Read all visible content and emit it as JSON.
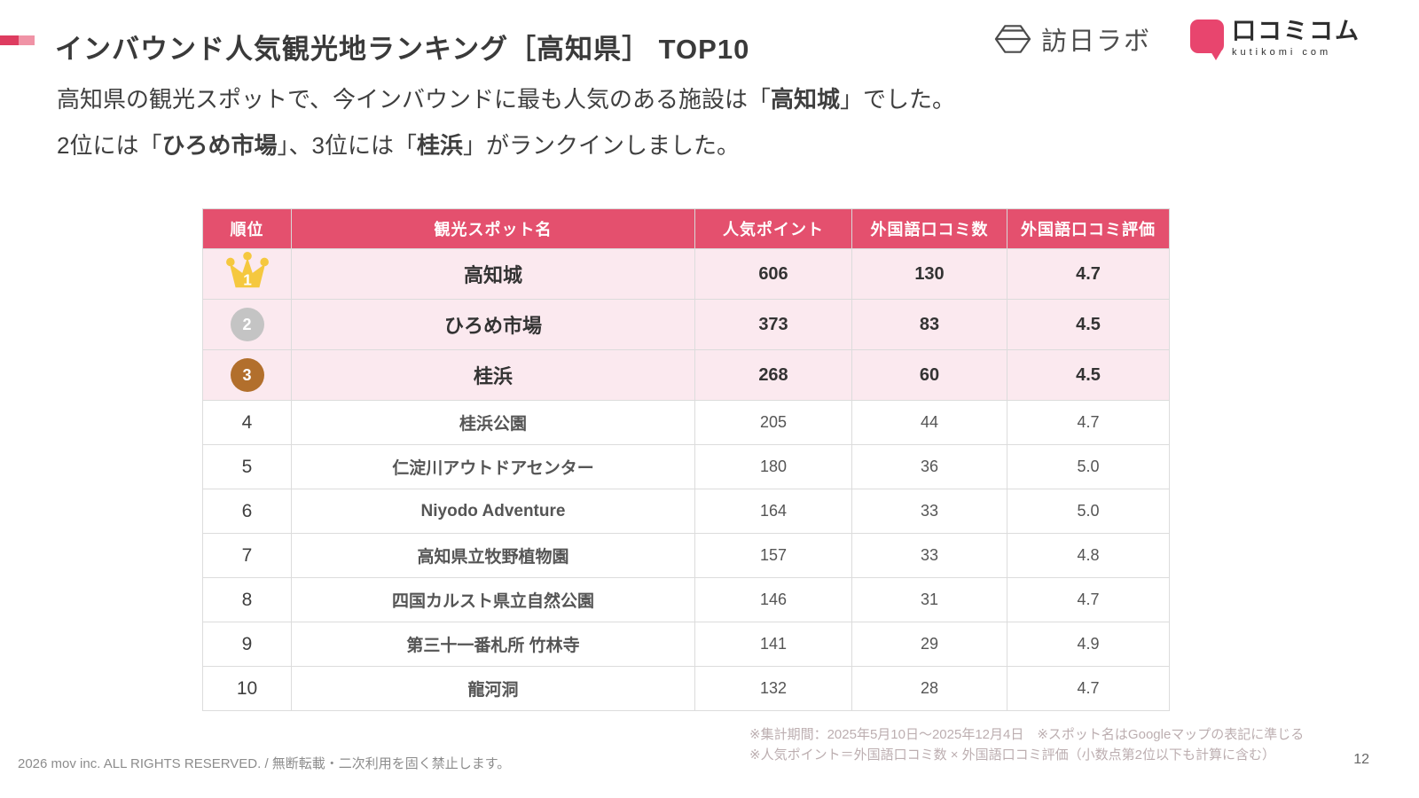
{
  "title": "インバウンド人気観光地ランキング［高知県］ TOP10",
  "accent_colors": {
    "dark": "#DE3C60",
    "light": "#F093A6"
  },
  "logos": {
    "houjitsu": {
      "name": "訪日ラボ"
    },
    "kutikomi": {
      "name": "口コミコム",
      "sub": "kutikomi com",
      "brand_color": "#E8456E"
    }
  },
  "lead": {
    "lines": [
      {
        "segments": [
          {
            "text": "高知県の観光スポットで、今インバウンドに最も人気のある施設は「",
            "bold": false
          },
          {
            "text": "高知城",
            "bold": true
          },
          {
            "text": "」でした。",
            "bold": false
          }
        ]
      },
      {
        "segments": [
          {
            "text": "2位には「",
            "bold": false
          },
          {
            "text": "ひろめ市場",
            "bold": true
          },
          {
            "text": "」、3位には「",
            "bold": false
          },
          {
            "text": "桂浜",
            "bold": true
          },
          {
            "text": "」がランクインしました。",
            "bold": false
          }
        ]
      }
    ]
  },
  "table": {
    "columns": [
      "順位",
      "観光スポット名",
      "人気ポイント",
      "外国語口コミ数",
      "外国語口コミ評価"
    ],
    "header_bg": "#E4506E",
    "top3_row_bg": "#FBE9EF",
    "medal_colors": {
      "gold": "#F5C83F",
      "silver": "#C4C4C4",
      "bronze": "#B26F2C"
    },
    "rows": [
      {
        "rank": "1",
        "tier": "gold",
        "name": "高知城",
        "points": "606",
        "reviews": "130",
        "rating": "4.7"
      },
      {
        "rank": "2",
        "tier": "silver",
        "name": "ひろめ市場",
        "points": "373",
        "reviews": "83",
        "rating": "4.5"
      },
      {
        "rank": "3",
        "tier": "bronze",
        "name": "桂浜",
        "points": "268",
        "reviews": "60",
        "rating": "4.5"
      },
      {
        "rank": "4",
        "tier": "normal",
        "name": "桂浜公園",
        "points": "205",
        "reviews": "44",
        "rating": "4.7"
      },
      {
        "rank": "5",
        "tier": "normal",
        "name": "仁淀川アウトドアセンター",
        "points": "180",
        "reviews": "36",
        "rating": "5.0"
      },
      {
        "rank": "6",
        "tier": "normal",
        "name": "Niyodo Adventure",
        "points": "164",
        "reviews": "33",
        "rating": "5.0"
      },
      {
        "rank": "7",
        "tier": "normal",
        "name": "高知県立牧野植物園",
        "points": "157",
        "reviews": "33",
        "rating": "4.8"
      },
      {
        "rank": "8",
        "tier": "normal",
        "name": "四国カルスト県立自然公園",
        "points": "146",
        "reviews": "31",
        "rating": "4.7"
      },
      {
        "rank": "9",
        "tier": "normal",
        "name": "第三十一番札所 竹林寺",
        "points": "141",
        "reviews": "29",
        "rating": "4.9"
      },
      {
        "rank": "10",
        "tier": "normal",
        "name": "龍河洞",
        "points": "132",
        "reviews": "28",
        "rating": "4.7"
      }
    ]
  },
  "footnotes": [
    "※集計期間：2025年5月10日〜2025年12月4日　※スポット名はGoogleマップの表記に準じる",
    "※人気ポイント＝外国語口コミ数 × 外国語口コミ評価（小数点第2位以下も計算に含む）"
  ],
  "footer": {
    "copyright": "2026 mov inc. ALL RIGHTS RESERVED. / 無断転載・二次利用を固く禁止します。",
    "page": "12"
  }
}
